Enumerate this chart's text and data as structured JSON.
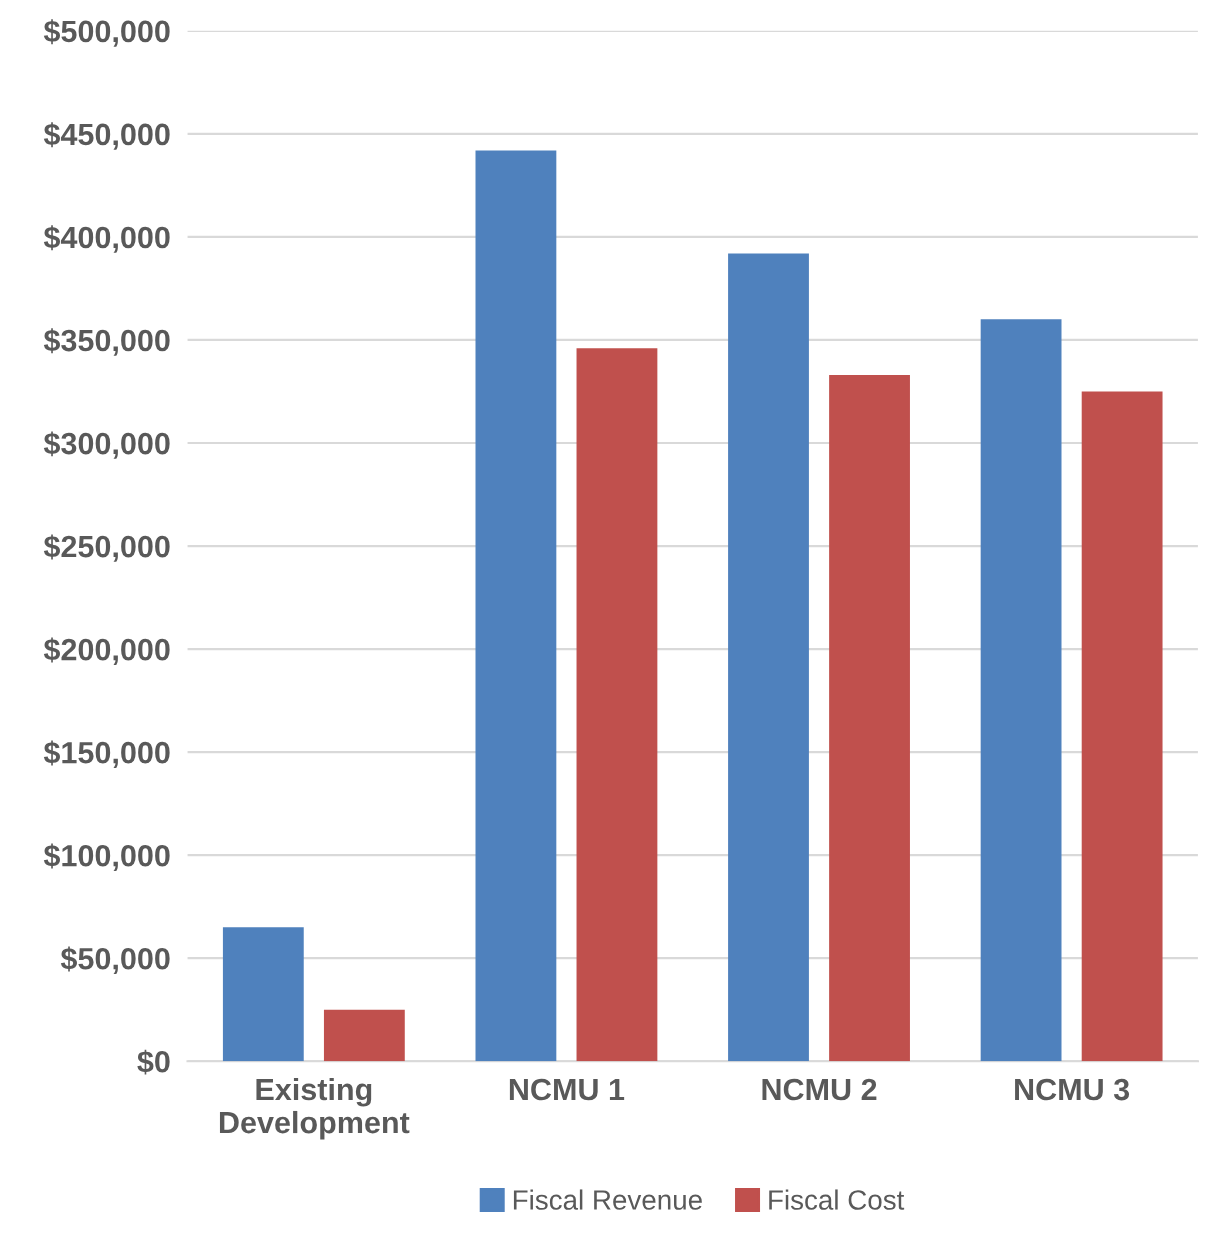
{
  "chart_data": {
    "type": "bar",
    "categories": [
      "Existing\nDevelopment",
      "NCMU 1",
      "NCMU 2",
      "NCMU 3"
    ],
    "series": [
      {
        "name": "Fiscal Revenue",
        "color": "#4f81bd",
        "values": [
          65000,
          442000,
          392000,
          360000
        ]
      },
      {
        "name": "Fiscal Cost",
        "color": "#c0504d",
        "values": [
          25000,
          346000,
          333000,
          325000
        ]
      }
    ],
    "ylim": [
      0,
      500000
    ],
    "yticks": [
      {
        "value": 0,
        "label": "$0"
      },
      {
        "value": 50000,
        "label": "$50,000"
      },
      {
        "value": 100000,
        "label": "$100,000"
      },
      {
        "value": 150000,
        "label": "$150,000"
      },
      {
        "value": 200000,
        "label": "$200,000"
      },
      {
        "value": 250000,
        "label": "$250,000"
      },
      {
        "value": 300000,
        "label": "$300,000"
      },
      {
        "value": 350000,
        "label": "$350,000"
      },
      {
        "value": 400000,
        "label": "$400,000"
      },
      {
        "value": 450000,
        "label": "$450,000"
      },
      {
        "value": 500000,
        "label": "$500,000"
      }
    ],
    "grid": "y",
    "legend": "bottom"
  }
}
